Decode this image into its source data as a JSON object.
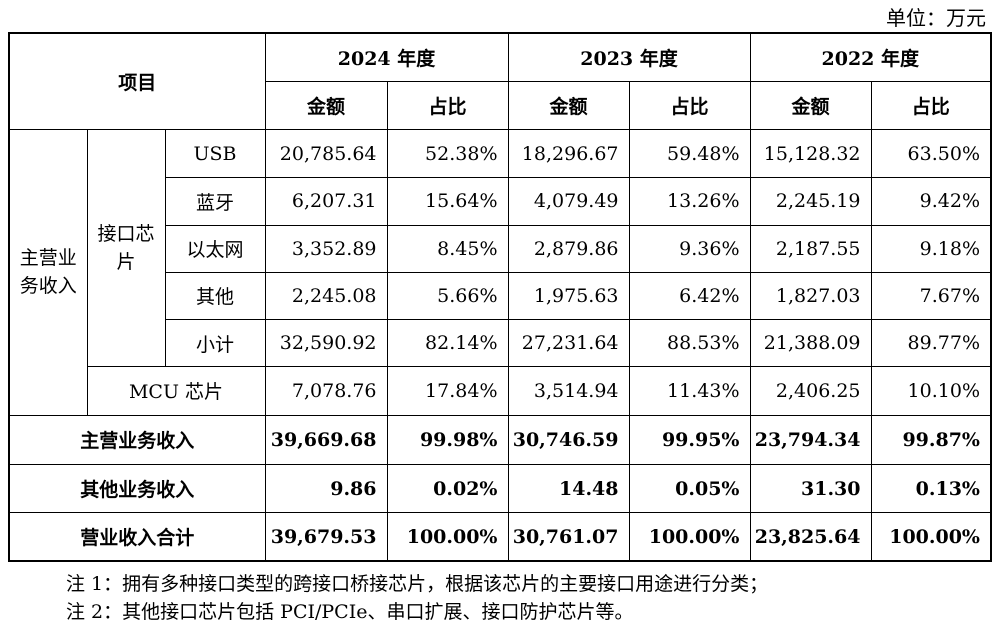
{
  "unit_label": "单位：万元",
  "header": {
    "item": "项目",
    "years": [
      "2024 年度",
      "2023 年度",
      "2022 年度"
    ],
    "amount": "金额",
    "ratio": "占比"
  },
  "groups": {
    "main_income_line1": "主营业",
    "main_income_line2": "务收入",
    "interface_chip_line1": "接口芯",
    "interface_chip_line2": "片"
  },
  "rows": [
    {
      "label": "USB",
      "values": [
        "20,785.64",
        "52.38%",
        "18,296.67",
        "59.48%",
        "15,128.32",
        "63.50%"
      ]
    },
    {
      "label": "蓝牙",
      "values": [
        "6,207.31",
        "15.64%",
        "4,079.49",
        "13.26%",
        "2,245.19",
        "9.42%"
      ]
    },
    {
      "label": "以太网",
      "values": [
        "3,352.89",
        "8.45%",
        "2,879.86",
        "9.36%",
        "2,187.55",
        "9.18%"
      ]
    },
    {
      "label": "其他",
      "values": [
        "2,245.08",
        "5.66%",
        "1,975.63",
        "6.42%",
        "1,827.03",
        "7.67%"
      ]
    },
    {
      "label": "小计",
      "values": [
        "32,590.92",
        "82.14%",
        "27,231.64",
        "88.53%",
        "21,388.09",
        "89.77%"
      ]
    },
    {
      "label": "MCU 芯片",
      "values": [
        "7,078.76",
        "17.84%",
        "3,514.94",
        "11.43%",
        "2,406.25",
        "10.10%"
      ]
    },
    {
      "label": "主营业务收入",
      "values": [
        "39,669.68",
        "99.98%",
        "30,746.59",
        "99.95%",
        "23,794.34",
        "99.87%"
      ]
    },
    {
      "label": "其他业务收入",
      "values": [
        "9.86",
        "0.02%",
        "14.48",
        "0.05%",
        "31.30",
        "0.13%"
      ]
    },
    {
      "label": "营业收入合计",
      "values": [
        "39,679.53",
        "100.00%",
        "30,761.07",
        "100.00%",
        "23,825.64",
        "100.00%"
      ]
    }
  ],
  "notes": [
    "注 1：拥有多种接口类型的跨接口桥接芯片，根据该芯片的主要接口用途进行分类；",
    "注 2：其他接口芯片包括 PCI/PCIe、串口扩展、接口防护芯片等。"
  ]
}
